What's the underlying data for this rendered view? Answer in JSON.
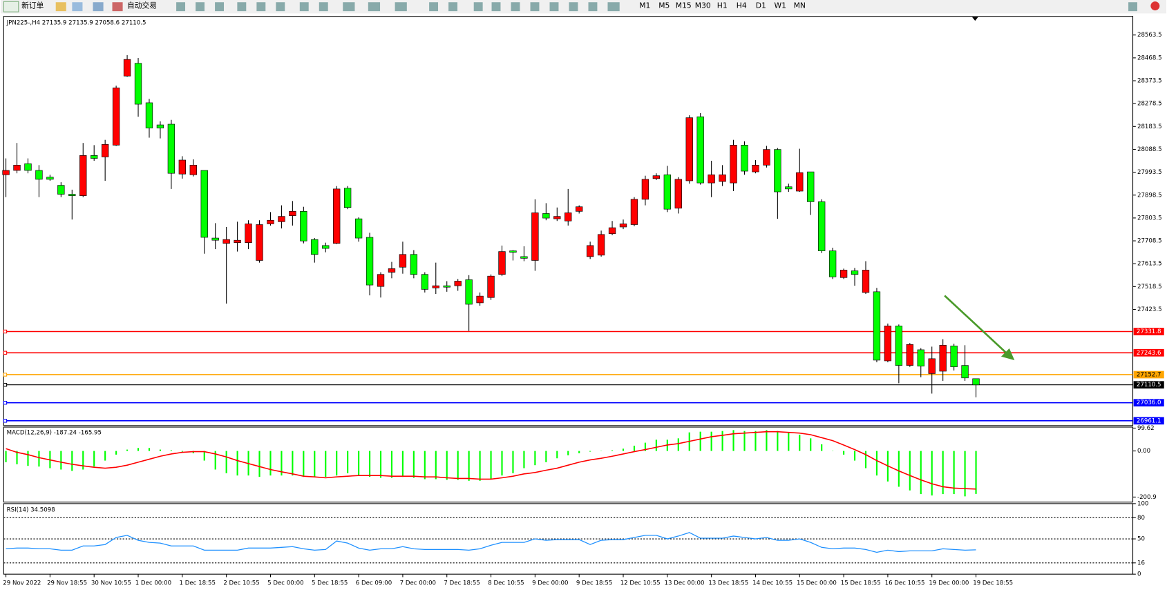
{
  "toolbar": {
    "new_order": "新订单",
    "auto_trading": "自动交易",
    "timeframes": [
      "M1",
      "M5",
      "M15",
      "M30",
      "H1",
      "H4",
      "D1",
      "W1",
      "MN"
    ]
  },
  "chart_data": [
    {
      "type": "candlestick",
      "symbol": "JPN225-,H4",
      "up_color": "#ff0000",
      "down_color": "#00ff00",
      "categories": [
        "29 Nov 2022",
        null,
        null,
        null,
        "29 Nov 18:55",
        null,
        null,
        null,
        "30 Nov 10:55",
        null,
        null,
        null,
        "1 Dec 00:00",
        null,
        null,
        null,
        "1 Dec 18:55",
        null,
        null,
        null,
        "2 Dec 10:55",
        null,
        null,
        null,
        "5 Dec 00:00",
        null,
        null,
        null,
        "5 Dec 18:55",
        null,
        null,
        null,
        "6 Dec 09:00",
        null,
        null,
        null,
        "7 Dec 00:00",
        null,
        null,
        null,
        "7 Dec 18:55",
        null,
        null,
        null,
        "8 Dec 10:55",
        null,
        null,
        null,
        "9 Dec 00:00",
        null,
        null,
        null,
        "9 Dec 18:55",
        null,
        null,
        null,
        "12 Dec 10:55",
        null,
        null,
        null,
        "13 Dec 00:00",
        null,
        null,
        null,
        "13 Dec 18:55",
        null,
        null,
        null,
        "14 Dec 10:55",
        null,
        null,
        null,
        "15 Dec 00:00",
        null,
        null,
        null,
        "15 Dec 18:55",
        null,
        null,
        null,
        "16 Dec 10:55",
        null,
        null,
        null,
        "19 Dec 00:00",
        null,
        null,
        null,
        "19 Dec 18:55"
      ],
      "candles": [
        [
          27983,
          28051,
          27890,
          28001
        ],
        [
          28001,
          28115,
          27989,
          28023
        ],
        [
          28029,
          28051,
          27989,
          28001
        ],
        [
          28001,
          28023,
          27890,
          27964
        ],
        [
          27973,
          27983,
          27958,
          27964
        ],
        [
          27939,
          27952,
          27890,
          27902
        ],
        [
          27902,
          27921,
          27797,
          27896
        ],
        [
          27896,
          28115,
          27890,
          28063
        ],
        [
          28063,
          28106,
          28041,
          28051
        ],
        [
          28057,
          28128,
          27958,
          28109
        ],
        [
          28106,
          28353,
          28103,
          28344
        ],
        [
          28393,
          28480,
          28390,
          28462
        ],
        [
          28446,
          28468,
          28224,
          28276
        ],
        [
          28282,
          28298,
          28137,
          28177
        ],
        [
          28190,
          28205,
          28134,
          28177
        ],
        [
          28193,
          28211,
          27924,
          27989
        ],
        [
          27986,
          28060,
          27967,
          28044
        ],
        [
          27983,
          28047,
          27976,
          28023
        ],
        [
          28001,
          28001,
          27655,
          27723
        ],
        [
          27720,
          27782,
          27674,
          27711
        ],
        [
          27698,
          27766,
          27448,
          27714
        ],
        [
          27701,
          27788,
          27664,
          27711
        ],
        [
          27701,
          27794,
          27674,
          27779
        ],
        [
          27627,
          27794,
          27618,
          27776
        ],
        [
          27779,
          27828,
          27772,
          27794
        ],
        [
          27788,
          27856,
          27760,
          27810
        ],
        [
          27813,
          27874,
          27772,
          27831
        ],
        [
          27831,
          27850,
          27698,
          27708
        ],
        [
          27714,
          27720,
          27618,
          27652
        ],
        [
          27689,
          27701,
          27661,
          27677
        ],
        [
          27698,
          27936,
          27695,
          27924
        ],
        [
          27927,
          27936,
          27840,
          27847
        ],
        [
          27800,
          27806,
          27705,
          27720
        ],
        [
          27723,
          27742,
          27482,
          27525
        ],
        [
          27519,
          27578,
          27473,
          27569
        ],
        [
          27578,
          27621,
          27553,
          27593
        ],
        [
          27599,
          27705,
          27572,
          27652
        ],
        [
          27652,
          27670,
          27553,
          27569
        ],
        [
          27569,
          27578,
          27494,
          27507
        ],
        [
          27513,
          27618,
          27488,
          27522
        ],
        [
          27522,
          27541,
          27497,
          27516
        ],
        [
          27522,
          27550,
          27501,
          27541
        ],
        [
          27547,
          27566,
          27334,
          27445
        ],
        [
          27451,
          27494,
          27439,
          27479
        ],
        [
          27473,
          27569,
          27463,
          27562
        ],
        [
          27569,
          27689,
          27562,
          27664
        ],
        [
          27667,
          27670,
          27627,
          27661
        ],
        [
          27643,
          27686,
          27624,
          27636
        ],
        [
          27627,
          27881,
          27584,
          27825
        ],
        [
          27822,
          27865,
          27794,
          27803
        ],
        [
          27800,
          27847,
          27791,
          27810
        ],
        [
          27791,
          27924,
          27772,
          27825
        ],
        [
          27831,
          27856,
          27822,
          27850
        ],
        [
          27643,
          27705,
          27633,
          27689
        ],
        [
          27649,
          27751,
          27643,
          27735
        ],
        [
          27738,
          27791,
          27732,
          27763
        ],
        [
          27766,
          27797,
          27757,
          27779
        ],
        [
          27776,
          27890,
          27769,
          27881
        ],
        [
          27881,
          27979,
          27856,
          27964
        ],
        [
          27967,
          27989,
          27961,
          27979
        ],
        [
          27983,
          28020,
          27828,
          27840
        ],
        [
          27844,
          27973,
          27822,
          27964
        ],
        [
          27958,
          28230,
          27946,
          28220
        ],
        [
          28224,
          28239,
          27942,
          27949
        ],
        [
          27949,
          28041,
          27890,
          27983
        ],
        [
          27955,
          28023,
          27936,
          27983
        ],
        [
          27949,
          28128,
          27915,
          28106
        ],
        [
          28106,
          28122,
          27983,
          27998
        ],
        [
          27995,
          28044,
          27989,
          28023
        ],
        [
          28023,
          28103,
          28013,
          28088
        ],
        [
          28088,
          28094,
          27800,
          27912
        ],
        [
          27933,
          27946,
          27912,
          27924
        ],
        [
          27915,
          28091,
          27912,
          27992
        ],
        [
          27995,
          27995,
          27816,
          27871
        ],
        [
          27871,
          27881,
          27658,
          27667
        ],
        [
          27667,
          27680,
          27550,
          27559
        ],
        [
          27556,
          27593,
          27550,
          27587
        ],
        [
          27584,
          27596,
          27522,
          27569
        ],
        [
          27494,
          27624,
          27488,
          27587
        ],
        [
          27497,
          27513,
          27204,
          27213
        ],
        [
          27210,
          27365,
          27204,
          27355
        ],
        [
          27355,
          27361,
          27117,
          27191
        ],
        [
          27191,
          27284,
          27185,
          27278
        ],
        [
          27256,
          27263,
          27142,
          27188
        ],
        [
          27157,
          27269,
          27074,
          27219
        ],
        [
          27167,
          27300,
          27127,
          27275
        ],
        [
          27272,
          27281,
          27170,
          27185
        ],
        [
          27191,
          27275,
          27127,
          27139
        ],
        [
          27135.9,
          27135.9,
          27058.6,
          27110.5
        ]
      ],
      "ylim": [
        26941,
        28641
      ],
      "yticks": [
        28563.5,
        28468.5,
        28373.5,
        28278.5,
        28183.5,
        28088.5,
        27993.5,
        27898.5,
        27803.5,
        27708.5,
        27613.5,
        27518.5,
        27423.5
      ],
      "hlines": [
        {
          "value": 27331.8,
          "color": "#ff0000"
        },
        {
          "value": 27243.6,
          "color": "#ff0000"
        },
        {
          "value": 27152.7,
          "color": "#ffa500"
        },
        {
          "value": 27110.5,
          "color": "#000000"
        },
        {
          "value": 27036,
          "label": "27036.0",
          "color": "#0000ff"
        },
        {
          "value": 26961.1,
          "color": "#0000ff"
        }
      ]
    },
    {
      "type": "macd",
      "name": "MACD(12,26,9)",
      "histogram_color": "#00ff00",
      "signal_color": "#ff0000",
      "histogram": [
        -49,
        -58,
        -65,
        -68,
        -75,
        -81,
        -87,
        -81,
        -68,
        -42,
        -16,
        6,
        13,
        13,
        6,
        3,
        -3,
        -10,
        -42,
        -81,
        -97,
        -107,
        -107,
        -113,
        -107,
        -107,
        -107,
        -113,
        -113,
        -113,
        -107,
        -97,
        -107,
        -113,
        -117,
        -117,
        -113,
        -117,
        -123,
        -123,
        -126,
        -126,
        -130,
        -130,
        -123,
        -107,
        -97,
        -75,
        -62,
        -49,
        -32,
        -19,
        -10,
        -3,
        -1,
        3,
        10,
        23,
        36,
        49,
        49,
        55,
        81,
        84,
        84,
        87,
        91,
        87,
        87,
        91,
        87,
        81,
        71,
        55,
        29,
        -1,
        -16,
        -42,
        -75,
        -107,
        -133,
        -156,
        -172,
        -188,
        -194,
        -188,
        -188,
        -198,
        -187.24
      ],
      "signal": [
        10,
        -6,
        -16,
        -29,
        -39,
        -49,
        -58,
        -65,
        -71,
        -75,
        -71,
        -62,
        -49,
        -36,
        -23,
        -13,
        -6,
        -3,
        -3,
        -13,
        -26,
        -42,
        -55,
        -68,
        -81,
        -91,
        -100,
        -110,
        -113,
        -117,
        -113,
        -110,
        -107,
        -107,
        -107,
        -110,
        -110,
        -110,
        -113,
        -113,
        -117,
        -120,
        -120,
        -123,
        -123,
        -117,
        -110,
        -100,
        -94,
        -84,
        -75,
        -62,
        -49,
        -39,
        -32,
        -23,
        -13,
        -3,
        6,
        16,
        26,
        32,
        42,
        52,
        62,
        68,
        75,
        78,
        81,
        84,
        84,
        81,
        78,
        71,
        58,
        45,
        26,
        6,
        -16,
        -42,
        -65,
        -87,
        -107,
        -126,
        -143,
        -156,
        -162,
        -164,
        -165.95
      ],
      "ylim": [
        -223,
        104
      ],
      "yticks": [
        99.62,
        {
          "value": 0,
          "label": "0.00"
        },
        -200.9
      ]
    },
    {
      "type": "line",
      "name": "RSI(14)",
      "color": "#1e90ff",
      "values": [
        36,
        37,
        37,
        36,
        36,
        34,
        34,
        40,
        40,
        42,
        52,
        55,
        48,
        45,
        44,
        40,
        40,
        40,
        34,
        34,
        34,
        34,
        37,
        37,
        37,
        38,
        39,
        36,
        34,
        35,
        47,
        44,
        37,
        34,
        36,
        36,
        39,
        36,
        35,
        35,
        35,
        35,
        34,
        36,
        41,
        45,
        45,
        45,
        50,
        48,
        49,
        49,
        49,
        42,
        48,
        49,
        49,
        52,
        55,
        55,
        50,
        54,
        59,
        51,
        51,
        51,
        54,
        52,
        50,
        52,
        48,
        48,
        50,
        45,
        38,
        36,
        37,
        37,
        35,
        31,
        34,
        32,
        33,
        33,
        33,
        36,
        35,
        34,
        34.5098
      ],
      "ylim": [
        0,
        100
      ],
      "yticks": [
        100,
        80,
        50,
        16,
        0
      ],
      "levels": [
        80,
        50,
        16
      ]
    }
  ]
}
